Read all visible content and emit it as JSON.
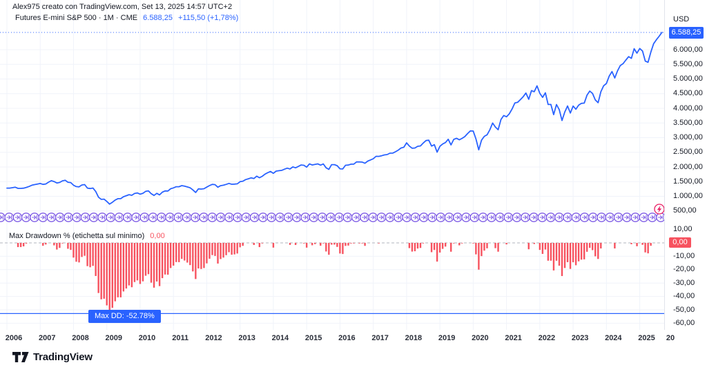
{
  "attribution": "Alex975 creato con TradingView.com, Set 13, 2025 14:57 UTC+2",
  "header": {
    "symbol_title": "Futures E-mini S&P 500 · 1M · CME",
    "last_price": "6.588,25",
    "change": "+115,50 (+1,78%)"
  },
  "price_axis": {
    "currency_label": "USD",
    "tick_values": [
      6000,
      5500,
      5000,
      4500,
      4000,
      3500,
      3000,
      2500,
      2000,
      1500,
      1000,
      500
    ],
    "tick_labels": [
      "6.000,00",
      "5.500,00",
      "5.000,00",
      "4.500,00",
      "4.000,00",
      "3.500,00",
      "3.000,00",
      "2.500,00",
      "2.000,00",
      "1.500,00",
      "1.000,00",
      "500,00"
    ],
    "price_badge": "6.588,25"
  },
  "dd_axis": {
    "tick_values": [
      10,
      0,
      -10,
      -20,
      -30,
      -40,
      -50,
      -60
    ],
    "tick_labels": [
      "10,00",
      "0,00",
      "-10,00",
      "-20,00",
      "-30,00",
      "-40,00",
      "-50,00",
      "-60,00"
    ],
    "value_badge": "0,00"
  },
  "indicator": {
    "name": "Max Drawdown % (etichetta sul minimo)",
    "current_value": "0,00",
    "max_dd_label": "Max DD: -52.78%",
    "max_dd_level": -52.78
  },
  "time_axis": {
    "years": [
      "2006",
      "2007",
      "2008",
      "2009",
      "2010",
      "2011",
      "2012",
      "2013",
      "2014",
      "2015",
      "2016",
      "2017",
      "2018",
      "2019",
      "2020",
      "2021",
      "2022",
      "2023",
      "2024",
      "2025"
    ],
    "partial_last": "20"
  },
  "logo_text": "TradingView",
  "icons": {
    "contract_switch": "circled-right-arrow-to-bar",
    "contract_switch_count": 79,
    "live_contract": "circled-lightning-bolt"
  },
  "colors": {
    "accent_blue": "#2962FF",
    "bar_red": "#F7525F",
    "icon_purple": "#7D5BE5",
    "icon_pink": "#E91E63",
    "grid": "#F0F3FA",
    "divider": "#E0E3EB",
    "text_dark": "#131722",
    "zero_line": "#B2B5BE"
  },
  "chart_data": {
    "type": "line",
    "title": "Futures E-mini S&P 500, monthly close (USD)",
    "start": "2006-01",
    "end": "2025-09",
    "last_price": 6588.25,
    "ylabel": "USD",
    "price_axis_ticks": [
      6000,
      5500,
      5000,
      4500,
      4000,
      3500,
      3000,
      2500,
      2000,
      1500,
      1000,
      500
    ],
    "monthly_close": [
      1280,
      1281,
      1295,
      1311,
      1270,
      1270,
      1277,
      1304,
      1336,
      1378,
      1401,
      1418,
      1438,
      1407,
      1421,
      1482,
      1531,
      1503,
      1455,
      1474,
      1527,
      1549,
      1481,
      1468,
      1379,
      1331,
      1323,
      1386,
      1400,
      1280,
      1267,
      1283,
      1166,
      969,
      896,
      903,
      826,
      735,
      798,
      873,
      919,
      919,
      987,
      1021,
      1057,
      1036,
      1096,
      1115,
      1074,
      1104,
      1169,
      1187,
      1089,
      1031,
      1102,
      1049,
      1141,
      1183,
      1181,
      1258,
      1286,
      1327,
      1326,
      1364,
      1345,
      1321,
      1292,
      1219,
      1131,
      1253,
      1247,
      1258,
      1312,
      1366,
      1408,
      1398,
      1310,
      1362,
      1379,
      1407,
      1441,
      1412,
      1416,
      1426,
      1498,
      1515,
      1569,
      1598,
      1631,
      1606,
      1686,
      1633,
      1682,
      1757,
      1806,
      1848,
      1783,
      1859,
      1872,
      1884,
      1924,
      1960,
      1931,
      2003,
      1972,
      2018,
      2068,
      2059,
      1995,
      2105,
      2068,
      2086,
      2107,
      2063,
      2104,
      1972,
      1920,
      2079,
      2080,
      2044,
      1940,
      1932,
      2060,
      2065,
      2097,
      2099,
      2174,
      2171,
      2168,
      2126,
      2199,
      2239,
      2279,
      2364,
      2363,
      2384,
      2412,
      2423,
      2470,
      2472,
      2519,
      2575,
      2648,
      2674,
      2824,
      2714,
      2641,
      2648,
      2705,
      2718,
      2816,
      2902,
      2914,
      2712,
      2760,
      2507,
      2704,
      2784,
      2834,
      2946,
      2752,
      2942,
      2980,
      2926,
      2977,
      3038,
      3141,
      3231,
      3226,
      2954,
      2585,
      2912,
      3044,
      3100,
      3271,
      3500,
      3363,
      3270,
      3622,
      3756,
      3714,
      3811,
      3973,
      4181,
      4204,
      4297,
      4395,
      4523,
      4308,
      4605,
      4567,
      4766,
      4516,
      4374,
      4530,
      4132,
      4132,
      3785,
      4130,
      3955,
      3586,
      3872,
      4080,
      3840,
      4077,
      3970,
      4109,
      4169,
      4180,
      4450,
      4589,
      4508,
      4288,
      4194,
      4568,
      4770,
      4846,
      5096,
      5254,
      5036,
      5278,
      5460,
      5522,
      5648,
      5762,
      5705,
      6032,
      5882,
      6041,
      5955,
      5612,
      5569,
      5912,
      6205,
      6339,
      6460,
      6588.25
    ],
    "indicator": {
      "type": "histogram",
      "name": "Max Drawdown %",
      "derivation": "percent distance of monthly close below running maximum close",
      "current": 0.0,
      "minimum": -52.78,
      "axis_range": [
        10,
        -60
      ]
    }
  }
}
